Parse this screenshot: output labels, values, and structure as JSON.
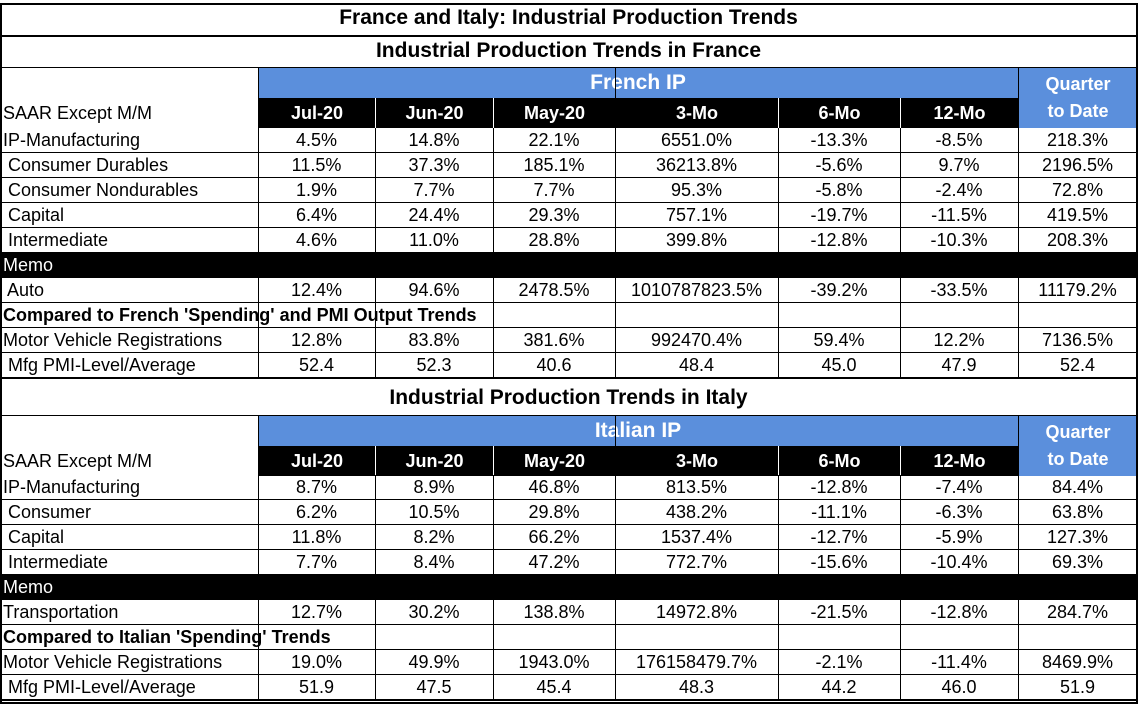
{
  "title": "France and Italy: Industrial Production Trends",
  "colors": {
    "header_blue": "#5b8fdc",
    "header_black": "#000000",
    "grid": "#000000"
  },
  "sections": [
    {
      "id": "france",
      "title": "Industrial Production Trends in France",
      "group_label": "French IP",
      "qtd_label_line1": "Quarter",
      "qtd_label_line2": "to Date",
      "row_header_label": "SAAR Except M/M",
      "columns": [
        "Jul-20",
        "Jun-20",
        "May-20",
        "3-Mo",
        "6-Mo",
        "12-Mo"
      ],
      "rows": [
        {
          "label": "IP-Manufacturing",
          "values": [
            "4.5%",
            "14.8%",
            "22.1%",
            "6551.0%",
            "-13.3%",
            "-8.5%",
            "218.3%"
          ]
        },
        {
          "label": " Consumer Durables",
          "values": [
            "11.5%",
            "37.3%",
            "185.1%",
            "36213.8%",
            "-5.6%",
            "9.7%",
            "2196.5%"
          ]
        },
        {
          "label": " Consumer Nondurables",
          "values": [
            "1.9%",
            "7.7%",
            "7.7%",
            "95.3%",
            "-5.8%",
            "-2.4%",
            "72.8%"
          ]
        },
        {
          "label": " Capital",
          "values": [
            "6.4%",
            "24.4%",
            "29.3%",
            "757.1%",
            "-19.7%",
            "-11.5%",
            "419.5%"
          ]
        },
        {
          "label": " Intermediate",
          "values": [
            "4.6%",
            "11.0%",
            "28.8%",
            "399.8%",
            "-12.8%",
            "-10.3%",
            "208.3%"
          ]
        }
      ],
      "memo_label": "Memo",
      "memo_rows": [
        {
          "label": " Auto",
          "values": [
            "12.4%",
            "94.6%",
            "2478.5%",
            "1010787823.5%",
            "-39.2%",
            "-33.5%",
            "11179.2%"
          ]
        }
      ],
      "compare_label": "Compared to French 'Spending' and PMI Output Trends",
      "compare_rows": [
        {
          "label": "Motor Vehicle Registrations",
          "values": [
            "12.8%",
            "83.8%",
            "381.6%",
            "992470.4%",
            "59.4%",
            "12.2%",
            "7136.5%"
          ]
        },
        {
          "label": " Mfg PMI-Level/Average",
          "values": [
            "52.4",
            "52.3",
            "40.6",
            "48.4",
            "45.0",
            "47.9",
            "52.4"
          ]
        }
      ]
    },
    {
      "id": "italy",
      "title": "Industrial Production Trends in Italy",
      "group_label": "Italian  IP",
      "qtd_label_line1": "Quarter",
      "qtd_label_line2": "to Date",
      "row_header_label": "SAAR Except M/M",
      "columns": [
        "Jul-20",
        "Jun-20",
        "May-20",
        "3-Mo",
        "6-Mo",
        "12-Mo"
      ],
      "rows": [
        {
          "label": "IP-Manufacturing",
          "values": [
            "8.7%",
            "8.9%",
            "46.8%",
            "813.5%",
            "-12.8%",
            "-7.4%",
            "84.4%"
          ]
        },
        {
          "label": " Consumer",
          "values": [
            "6.2%",
            "10.5%",
            "29.8%",
            "438.2%",
            "-11.1%",
            "-6.3%",
            "63.8%"
          ]
        },
        {
          "label": " Capital",
          "values": [
            "11.8%",
            "8.2%",
            "66.2%",
            "1537.4%",
            "-12.7%",
            "-5.9%",
            "127.3%"
          ]
        },
        {
          "label": " Intermediate",
          "values": [
            "7.7%",
            "8.4%",
            "47.2%",
            "772.7%",
            "-15.6%",
            "-10.4%",
            "69.3%"
          ]
        }
      ],
      "memo_label": "Memo",
      "memo_rows": [
        {
          "label": "Transportation",
          "values": [
            "12.7%",
            "30.2%",
            "138.8%",
            "14972.8%",
            "-21.5%",
            "-12.8%",
            "284.7%"
          ]
        }
      ],
      "compare_label": "Compared to Italian 'Spending' Trends",
      "compare_rows": [
        {
          "label": "Motor Vehicle Registrations",
          "values": [
            "19.0%",
            "49.9%",
            "1943.0%",
            "176158479.7%",
            "-2.1%",
            "-11.4%",
            "8469.9%"
          ]
        },
        {
          "label": " Mfg PMI-Level/Average",
          "values": [
            "51.9",
            "47.5",
            "45.4",
            "48.3",
            "44.2",
            "46.0",
            "51.9"
          ]
        }
      ]
    }
  ]
}
